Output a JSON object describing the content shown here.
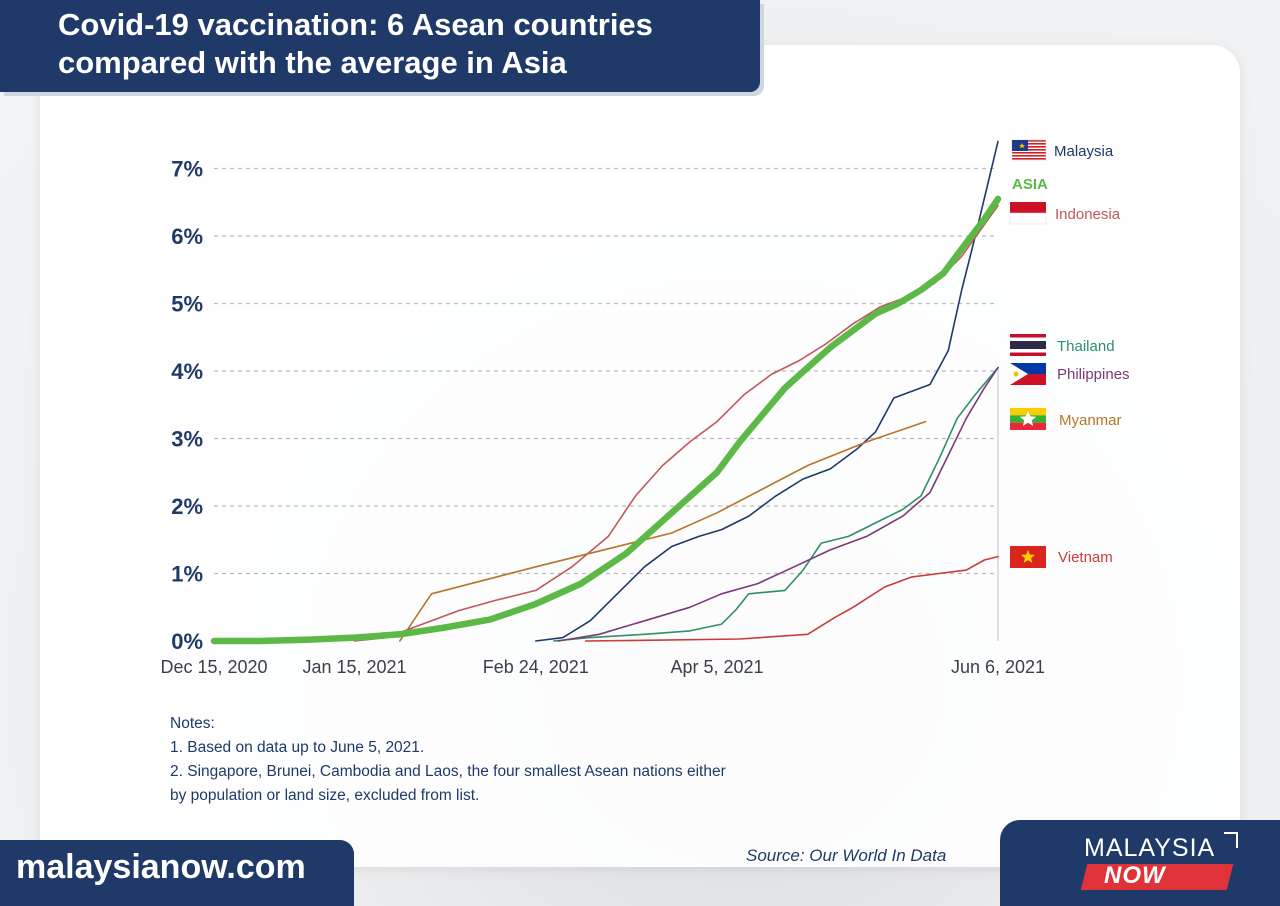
{
  "header": {
    "title_line1": "Covid-19 vaccination: 6 Asean countries",
    "title_line2": "compared with the average in Asia"
  },
  "footer": {
    "site": "malaysianow.com",
    "source": "Source: Our World In Data",
    "logo_top": "MALAYSIA",
    "logo_bottom": "NOW"
  },
  "notes": {
    "heading": "Notes:",
    "line1": "1. Based on data up to June 5, 2021.",
    "line2": "2. Singapore, Brunei, Cambodia and Laos, the four smallest Asean nations either",
    "line3": "by population or land size, excluded from list."
  },
  "chart_data": {
    "type": "line",
    "title": "Covid-19 vaccination: 6 Asean countries compared with the average in Asia",
    "xlabel": "",
    "ylabel": "",
    "x_range": [
      "2020-12-15",
      "2021-06-06"
    ],
    "ylim": [
      0,
      7.3
    ],
    "y_ticks": [
      0,
      1,
      2,
      3,
      4,
      5,
      6,
      7
    ],
    "y_tick_labels": [
      "0%",
      "1%",
      "2%",
      "3%",
      "4%",
      "5%",
      "6%",
      "7%"
    ],
    "x_ticks": [
      "2020-12-15",
      "2021-01-15",
      "2021-02-24",
      "2021-04-05",
      "2021-06-06"
    ],
    "x_tick_labels": [
      "Dec 15, 2020",
      "Jan 15, 2021",
      "Feb 24, 2021",
      "Apr 5, 2021",
      "Jun 6, 2021"
    ],
    "grid": "horizontal dashed",
    "legend_placement": "right",
    "series": [
      {
        "name": "Malaysia",
        "color": "#1f3a68",
        "flag": "malaysia-flag-icon",
        "points": [
          [
            "2021-02-24",
            0
          ],
          [
            "2021-03-02",
            0.05
          ],
          [
            "2021-03-08",
            0.3
          ],
          [
            "2021-03-14",
            0.7
          ],
          [
            "2021-03-20",
            1.1
          ],
          [
            "2021-03-26",
            1.4
          ],
          [
            "2021-04-01",
            1.55
          ],
          [
            "2021-04-06",
            1.65
          ],
          [
            "2021-04-12",
            1.85
          ],
          [
            "2021-04-18",
            2.15
          ],
          [
            "2021-04-24",
            2.4
          ],
          [
            "2021-04-30",
            2.55
          ],
          [
            "2021-05-06",
            2.85
          ],
          [
            "2021-05-10",
            3.1
          ],
          [
            "2021-05-14",
            3.6
          ],
          [
            "2021-05-18",
            3.7
          ],
          [
            "2021-05-22",
            3.8
          ],
          [
            "2021-05-26",
            4.3
          ],
          [
            "2021-05-29",
            5.2
          ],
          [
            "2021-06-01",
            6.0
          ],
          [
            "2021-06-06",
            7.4
          ]
        ]
      },
      {
        "name": "ASIA",
        "color": "#5cb847",
        "points": [
          [
            "2020-12-15",
            0
          ],
          [
            "2020-12-25",
            0
          ],
          [
            "2021-01-05",
            0.02
          ],
          [
            "2021-01-15",
            0.05
          ],
          [
            "2021-01-25",
            0.1
          ],
          [
            "2021-02-04",
            0.2
          ],
          [
            "2021-02-14",
            0.32
          ],
          [
            "2021-02-24",
            0.55
          ],
          [
            "2021-03-06",
            0.85
          ],
          [
            "2021-03-16",
            1.3
          ],
          [
            "2021-03-26",
            1.9
          ],
          [
            "2021-04-05",
            2.5
          ],
          [
            "2021-04-10",
            2.95
          ],
          [
            "2021-04-15",
            3.35
          ],
          [
            "2021-04-20",
            3.75
          ],
          [
            "2021-04-25",
            4.05
          ],
          [
            "2021-04-30",
            4.35
          ],
          [
            "2021-05-05",
            4.6
          ],
          [
            "2021-05-10",
            4.85
          ],
          [
            "2021-05-15",
            5.0
          ],
          [
            "2021-05-20",
            5.2
          ],
          [
            "2021-05-25",
            5.45
          ],
          [
            "2021-05-30",
            5.9
          ],
          [
            "2021-06-03",
            6.25
          ],
          [
            "2021-06-06",
            6.55
          ]
        ]
      },
      {
        "name": "Indonesia",
        "color": "#c2575e",
        "flag": "indonesia-flag-icon",
        "points": [
          [
            "2021-01-15",
            0
          ],
          [
            "2021-01-22",
            0.05
          ],
          [
            "2021-01-30",
            0.25
          ],
          [
            "2021-02-07",
            0.45
          ],
          [
            "2021-02-15",
            0.6
          ],
          [
            "2021-02-24",
            0.75
          ],
          [
            "2021-03-04",
            1.1
          ],
          [
            "2021-03-12",
            1.55
          ],
          [
            "2021-03-18",
            2.15
          ],
          [
            "2021-03-24",
            2.6
          ],
          [
            "2021-03-30",
            2.95
          ],
          [
            "2021-04-05",
            3.25
          ],
          [
            "2021-04-11",
            3.65
          ],
          [
            "2021-04-17",
            3.95
          ],
          [
            "2021-04-23",
            4.15
          ],
          [
            "2021-04-29",
            4.4
          ],
          [
            "2021-05-05",
            4.7
          ],
          [
            "2021-05-11",
            4.95
          ],
          [
            "2021-05-17",
            5.1
          ],
          [
            "2021-05-23",
            5.3
          ],
          [
            "2021-05-29",
            5.7
          ],
          [
            "2021-06-06",
            6.45
          ]
        ]
      },
      {
        "name": "Thailand",
        "color": "#2f8f68",
        "flag": "thailand-flag-icon",
        "points": [
          [
            "2021-02-28",
            0
          ],
          [
            "2021-03-08",
            0.05
          ],
          [
            "2021-03-20",
            0.1
          ],
          [
            "2021-03-30",
            0.15
          ],
          [
            "2021-04-06",
            0.25
          ],
          [
            "2021-04-09",
            0.45
          ],
          [
            "2021-04-12",
            0.7
          ],
          [
            "2021-04-20",
            0.75
          ],
          [
            "2021-04-24",
            1.05
          ],
          [
            "2021-04-28",
            1.45
          ],
          [
            "2021-05-04",
            1.55
          ],
          [
            "2021-05-10",
            1.75
          ],
          [
            "2021-05-16",
            1.95
          ],
          [
            "2021-05-20",
            2.15
          ],
          [
            "2021-05-24",
            2.7
          ],
          [
            "2021-05-28",
            3.3
          ],
          [
            "2021-06-01",
            3.65
          ],
          [
            "2021-06-06",
            4.05
          ]
        ]
      },
      {
        "name": "Philippines",
        "color": "#7a3a7a",
        "flag": "philippines-flag-icon",
        "points": [
          [
            "2021-03-01",
            0
          ],
          [
            "2021-03-10",
            0.1
          ],
          [
            "2021-03-20",
            0.3
          ],
          [
            "2021-03-30",
            0.5
          ],
          [
            "2021-04-06",
            0.7
          ],
          [
            "2021-04-14",
            0.85
          ],
          [
            "2021-04-22",
            1.1
          ],
          [
            "2021-04-30",
            1.35
          ],
          [
            "2021-05-08",
            1.55
          ],
          [
            "2021-05-16",
            1.85
          ],
          [
            "2021-05-22",
            2.2
          ],
          [
            "2021-05-26",
            2.75
          ],
          [
            "2021-05-30",
            3.3
          ],
          [
            "2021-06-03",
            3.75
          ],
          [
            "2021-06-06",
            4.05
          ]
        ]
      },
      {
        "name": "Myanmar",
        "color": "#b8742a",
        "flag": "myanmar-flag-icon",
        "points": [
          [
            "2021-01-25",
            0
          ],
          [
            "2021-02-01",
            0.7
          ],
          [
            "2021-02-24",
            1.1
          ],
          [
            "2021-03-26",
            1.6
          ],
          [
            "2021-04-05",
            1.9
          ],
          [
            "2021-04-25",
            2.6
          ],
          [
            "2021-05-08",
            2.95
          ],
          [
            "2021-05-21",
            3.25
          ]
        ]
      },
      {
        "name": "Vietnam",
        "color": "#c93c3c",
        "flag": "vietnam-flag-icon",
        "points": [
          [
            "2021-03-07",
            0
          ],
          [
            "2021-03-20",
            0.01
          ],
          [
            "2021-04-10",
            0.03
          ],
          [
            "2021-04-25",
            0.1
          ],
          [
            "2021-05-01",
            0.35
          ],
          [
            "2021-05-05",
            0.5
          ],
          [
            "2021-05-12",
            0.8
          ],
          [
            "2021-05-18",
            0.95
          ],
          [
            "2021-05-24",
            1.0
          ],
          [
            "2021-05-30",
            1.05
          ],
          [
            "2021-06-03",
            1.2
          ],
          [
            "2021-06-06",
            1.25
          ]
        ]
      }
    ]
  }
}
